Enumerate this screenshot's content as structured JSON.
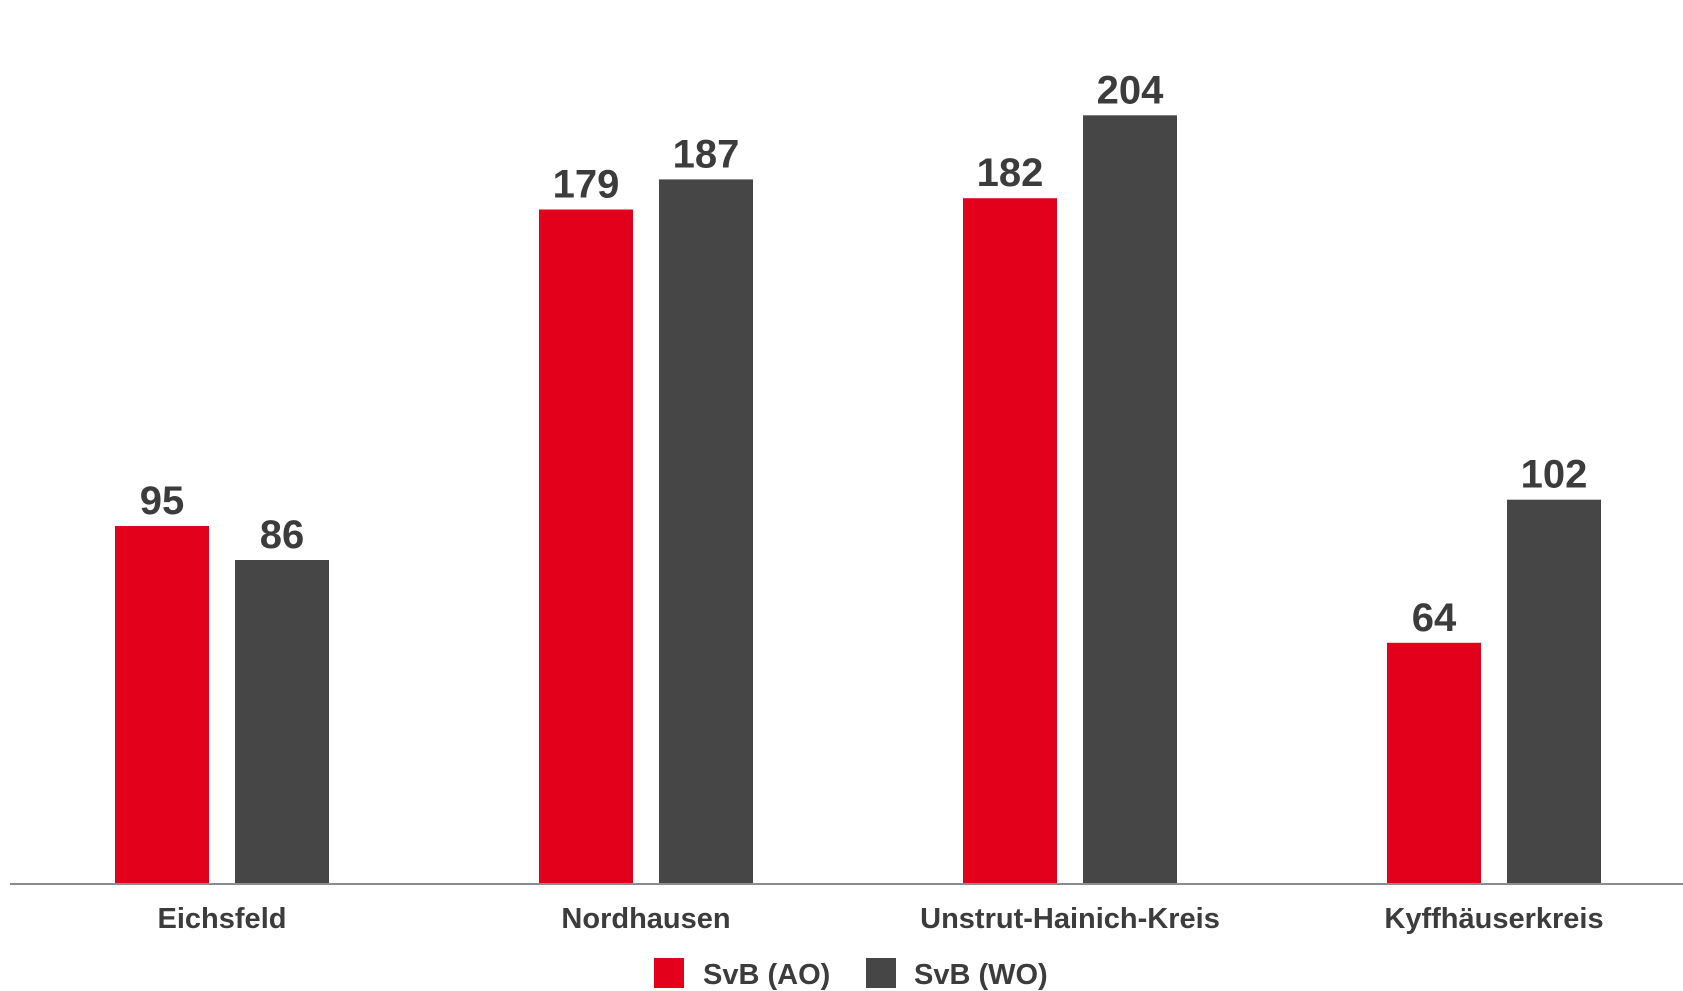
{
  "chart_data": {
    "type": "bar",
    "categories": [
      "Eichsfeld",
      "Nordhausen",
      "Unstrut-Hainich-Kreis",
      "Kyffhäuserkreis"
    ],
    "series": [
      {
        "name": "SvB (AO)",
        "values": [
          95,
          179,
          182,
          64
        ],
        "color": "#e2001a"
      },
      {
        "name": "SvB (WO)",
        "values": [
          86,
          187,
          204,
          102
        ],
        "color": "#464646"
      }
    ],
    "ylim": [
      0,
      210
    ],
    "grid": false,
    "legend_position": "bottom-center",
    "axis_color": "#8c8c8c",
    "text_color": "#3c3c3c"
  }
}
